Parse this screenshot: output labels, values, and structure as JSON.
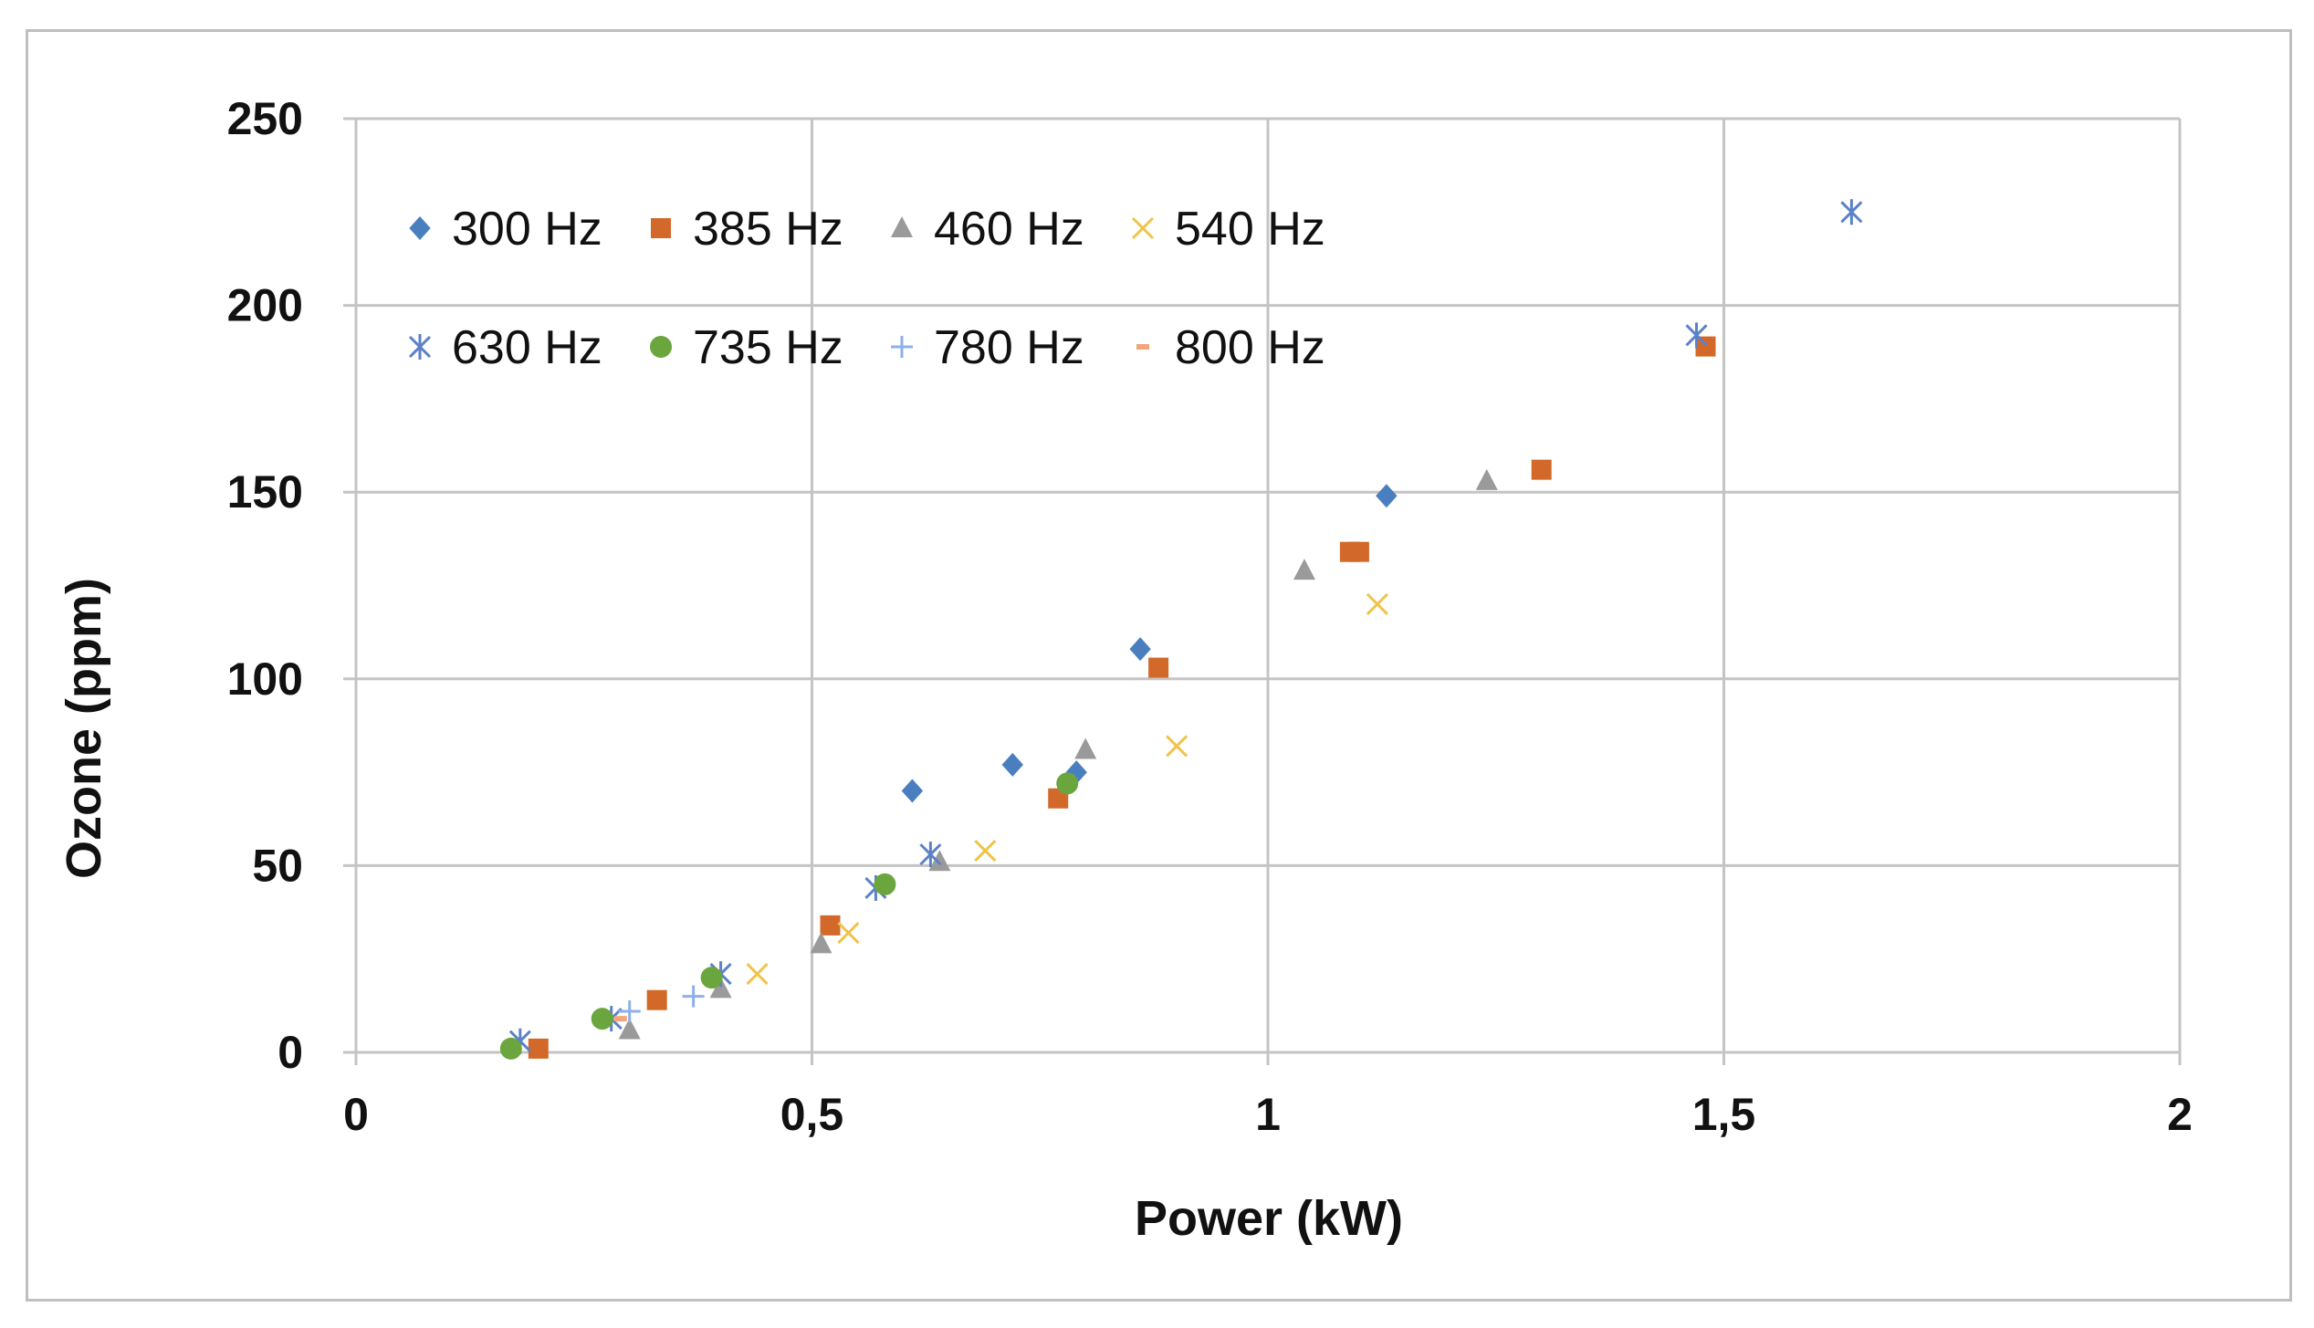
{
  "chart_data": {
    "type": "scatter",
    "title": "",
    "xlabel": "Power (kW)",
    "ylabel": "Ozone (ppm)",
    "xlim": [
      0,
      2
    ],
    "ylim": [
      0,
      250
    ],
    "x_ticks": [
      0,
      0.5,
      1,
      1.5,
      2
    ],
    "x_tick_labels": [
      "0",
      "0,5",
      "1",
      "1,5",
      "2"
    ],
    "y_ticks": [
      0,
      50,
      100,
      150,
      200,
      250
    ],
    "y_tick_labels": [
      "0",
      "50",
      "100",
      "150",
      "200",
      "250"
    ],
    "grid": true,
    "legend_position": "top-left",
    "series": [
      {
        "name": "300 Hz",
        "marker": "diamond",
        "color": "#4a7fbf",
        "points": [
          [
            0.61,
            70
          ],
          [
            0.72,
            77
          ],
          [
            0.79,
            75
          ],
          [
            0.86,
            108
          ],
          [
            1.13,
            149
          ]
        ]
      },
      {
        "name": "385 Hz",
        "marker": "square",
        "color": "#d2692a",
        "points": [
          [
            0.2,
            1
          ],
          [
            0.33,
            14
          ],
          [
            0.52,
            34
          ],
          [
            0.77,
            68
          ],
          [
            0.88,
            103
          ],
          [
            1.09,
            134
          ],
          [
            1.1,
            134
          ],
          [
            1.3,
            156
          ],
          [
            1.48,
            189
          ]
        ]
      },
      {
        "name": "460 Hz",
        "marker": "triangle",
        "color": "#9a9a9a",
        "points": [
          [
            0.3,
            6
          ],
          [
            0.4,
            17
          ],
          [
            0.51,
            29
          ],
          [
            0.64,
            51
          ],
          [
            0.8,
            81
          ],
          [
            1.04,
            129
          ],
          [
            1.24,
            153
          ]
        ]
      },
      {
        "name": "540 Hz",
        "marker": "x",
        "color": "#f0c44a",
        "points": [
          [
            0.44,
            21
          ],
          [
            0.54,
            32
          ],
          [
            0.69,
            54
          ],
          [
            0.9,
            82
          ],
          [
            1.12,
            120
          ]
        ]
      },
      {
        "name": "630 Hz",
        "marker": "asterisk",
        "color": "#5b82c8",
        "points": [
          [
            0.18,
            3
          ],
          [
            0.28,
            9
          ],
          [
            0.4,
            21
          ],
          [
            0.57,
            44
          ],
          [
            0.63,
            53
          ],
          [
            1.47,
            192
          ],
          [
            1.64,
            225
          ]
        ]
      },
      {
        "name": "735 Hz",
        "marker": "circle",
        "color": "#6ba53e",
        "points": [
          [
            0.17,
            1
          ],
          [
            0.27,
            9
          ],
          [
            0.39,
            20
          ],
          [
            0.58,
            45
          ],
          [
            0.78,
            72
          ]
        ]
      },
      {
        "name": "780 Hz",
        "marker": "plus",
        "color": "#8fb0e8",
        "points": [
          [
            0.3,
            11
          ],
          [
            0.37,
            15
          ]
        ]
      },
      {
        "name": "800 Hz",
        "marker": "dash",
        "color": "#f4a57a",
        "points": [
          [
            0.29,
            9
          ]
        ]
      }
    ]
  }
}
